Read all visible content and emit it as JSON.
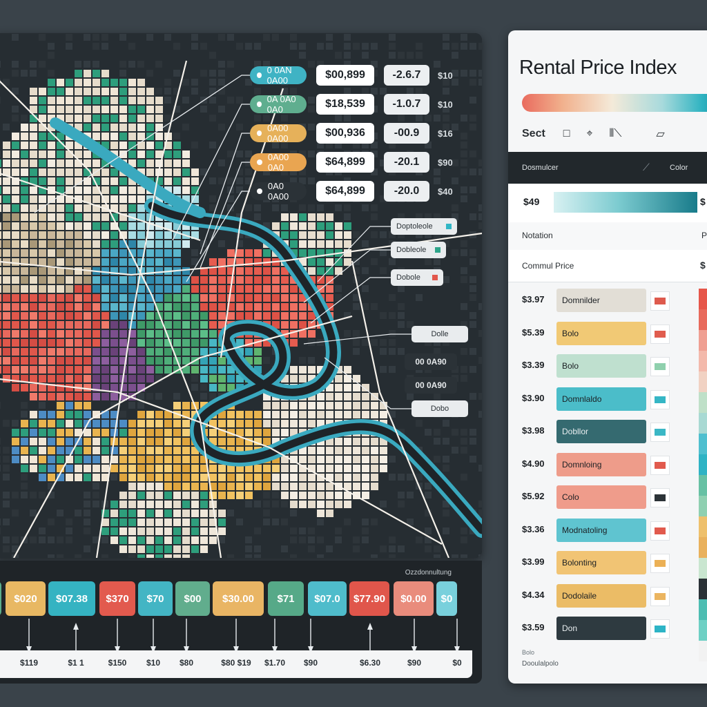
{
  "map": {
    "price_labels": [
      {
        "pill": "0 0AN 0A00",
        "price": "$00,899",
        "change": "-2.6.7",
        "tail": "$10",
        "color": "#3fb3c4"
      },
      {
        "pill": "0A 0A0 0A0",
        "price": "$18,539",
        "change": "-1.0.7",
        "tail": "$10",
        "color": "#5fae8f"
      },
      {
        "pill": "0A00 0A00",
        "price": "$00,936",
        "change": "-00.9",
        "tail": "$16",
        "color": "#e6b15a"
      },
      {
        "pill": "0A00 0A0",
        "price": "$64,899",
        "change": "-20.1",
        "tail": "$90",
        "color": "#e9a551"
      },
      {
        "pill": "0A0 0A00",
        "price": "$64,899",
        "change": "-20.0",
        "tail": "$40",
        "color": "#2b3237"
      }
    ],
    "callouts": [
      {
        "label": "Doptoleole",
        "swatch": "#31b6c5"
      },
      {
        "label": "Dobleole",
        "swatch": "#2ea58a"
      },
      {
        "label": "Dobole",
        "swatch": "#e2574c"
      },
      {
        "label": "Dolle",
        "swatch": ""
      },
      {
        "label": "Dobo",
        "swatch": ""
      }
    ],
    "small_values": [
      "00  0A90",
      "00  0A90"
    ]
  },
  "bottom": {
    "caption": "Ozzdonnultung",
    "chips": [
      {
        "value": "",
        "color": "#5cae8c"
      },
      {
        "value": "$020",
        "color": "#e8b863"
      },
      {
        "value": "$07.38",
        "color": "#35b3c2"
      },
      {
        "value": "$370",
        "color": "#e25a4e"
      },
      {
        "value": "$70",
        "color": "#43b5c4"
      },
      {
        "value": "$00",
        "color": "#61ad8d"
      },
      {
        "value": "$30.00",
        "color": "#e9b564"
      },
      {
        "value": "$71",
        "color": "#56a988"
      },
      {
        "value": "$07.0",
        "color": "#4fbccb"
      },
      {
        "value": "$77.90",
        "color": "#e0564b"
      },
      {
        "value": "$0.00",
        "color": "#e98c7c"
      },
      {
        "value": "$0",
        "color": "#79d0dc"
      }
    ],
    "ticks": [
      "$119",
      "$1 1",
      "$150",
      "$10",
      "$80",
      "$80 $19",
      "$1.70",
      "$90",
      "$6.30",
      "$90",
      "$0"
    ]
  },
  "legend": {
    "title": "Rental Price Index",
    "sect_label": "Sect",
    "band_left": "Dosmulcer",
    "band_right": "Color",
    "price_row_label": "$49",
    "price_row_right": "$",
    "notation_label": "Notation",
    "notation_right": "P",
    "cp_label": "Commul Price",
    "cp_right": "$",
    "rows": [
      {
        "price": "$3.97",
        "name": "Domnilder",
        "bar": "#e2ded6",
        "swatch": "#de5a4d"
      },
      {
        "price": "$5.39",
        "name": "Bolo",
        "bar": "#f1c975",
        "swatch": "#e05c4e"
      },
      {
        "price": "$3.39",
        "name": "Bolo",
        "bar": "#bfe0cf",
        "swatch": "#8fd0ad"
      },
      {
        "price": "$3.90",
        "name": "Domnlaldo",
        "bar": "#4bbdc9",
        "swatch": "#35b6c5"
      },
      {
        "price": "$3.98",
        "name": "Dobllor",
        "bar": "#356a70",
        "swatch": "#3ab7c5"
      },
      {
        "price": "$4.90",
        "name": "Domnloing",
        "bar": "#ee9c8a",
        "swatch": "#e15a4d"
      },
      {
        "price": "$5.92",
        "name": "Colo",
        "bar": "#ef9c8b",
        "swatch": "#2b3237"
      },
      {
        "price": "$3.36",
        "name": "Modnatoling",
        "bar": "#5fc4d0",
        "swatch": "#e15a4d"
      },
      {
        "price": "$3.99",
        "name": "Bolonting",
        "bar": "#f1c474",
        "swatch": "#ebb055"
      },
      {
        "price": "$4.34",
        "name": "Dodolaile",
        "bar": "#ebbc66",
        "swatch": "#ebb560"
      },
      {
        "price": "$3.59",
        "name": "Don",
        "bar": "#2e3a40",
        "swatch": "#2db4c6"
      }
    ],
    "side_scale": [
      "#e6564a",
      "#e86a5c",
      "#ef9f92",
      "#f3b9ab",
      "#f1d2c3",
      "#bfe0c8",
      "#a8d9d3",
      "#4fbfcf",
      "#2fb3c4",
      "#67c1a4",
      "#8fd0b1",
      "#eec06c",
      "#e9b15d",
      "#c9e6d0",
      "#2b3237",
      "#4dbdb2",
      "#6ed0c4",
      "#f2f2f2"
    ],
    "footer_small": "Bolo",
    "footer": "Dooulalpolo"
  }
}
